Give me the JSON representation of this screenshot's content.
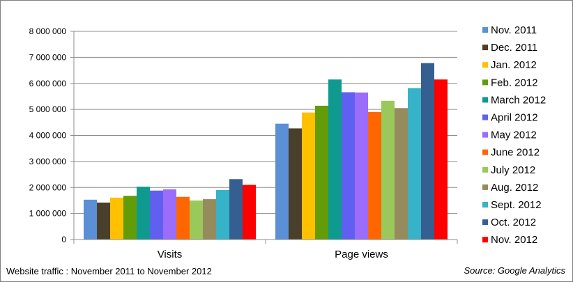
{
  "footer": {
    "caption": "Website traffic : November 2011 to November 2012",
    "source": "Source: Google Analytics"
  },
  "chart_data": {
    "type": "bar",
    "title": "",
    "categories": [
      "Visits",
      "Page views"
    ],
    "ylim": [
      0,
      8000000
    ],
    "yticks": [
      0,
      1000000,
      2000000,
      3000000,
      4000000,
      5000000,
      6000000,
      7000000,
      8000000
    ],
    "ytick_labels": [
      "0",
      "1 000 000",
      "2 000 000",
      "3 000 000",
      "4 000 000",
      "5 000 000",
      "6 000 000",
      "7 000 000",
      "8 000 000"
    ],
    "grid": true,
    "legend_position": "right",
    "series": [
      {
        "name": "Nov. 2011",
        "color": "#5b8fd6",
        "values": [
          1530000,
          4450000
        ]
      },
      {
        "name": "Dec. 2011",
        "color": "#4a3f2a",
        "values": [
          1420000,
          4270000
        ]
      },
      {
        "name": "Jan. 2012",
        "color": "#ffc000",
        "values": [
          1610000,
          4880000
        ]
      },
      {
        "name": "Feb. 2012",
        "color": "#629c09",
        "values": [
          1680000,
          5140000
        ]
      },
      {
        "name": "March 2012",
        "color": "#0f9a8f",
        "values": [
          2030000,
          6150000
        ]
      },
      {
        "name": "April 2012",
        "color": "#6060f0",
        "values": [
          1880000,
          5660000
        ]
      },
      {
        "name": "May 2012",
        "color": "#9b6dfa",
        "values": [
          1930000,
          5650000
        ]
      },
      {
        "name": "June 2012",
        "color": "#ff6600",
        "values": [
          1640000,
          4900000
        ]
      },
      {
        "name": "July 2012",
        "color": "#9bc85a",
        "values": [
          1500000,
          5330000
        ]
      },
      {
        "name": "Aug. 2012",
        "color": "#958b5c",
        "values": [
          1550000,
          5050000
        ]
      },
      {
        "name": "Sept. 2012",
        "color": "#36b3c8",
        "values": [
          1900000,
          5820000
        ]
      },
      {
        "name": "Oct. 2012",
        "color": "#355f91",
        "values": [
          2320000,
          6780000
        ]
      },
      {
        "name": "Nov. 2012",
        "color": "#ff0000",
        "values": [
          2100000,
          6150000
        ]
      }
    ]
  }
}
